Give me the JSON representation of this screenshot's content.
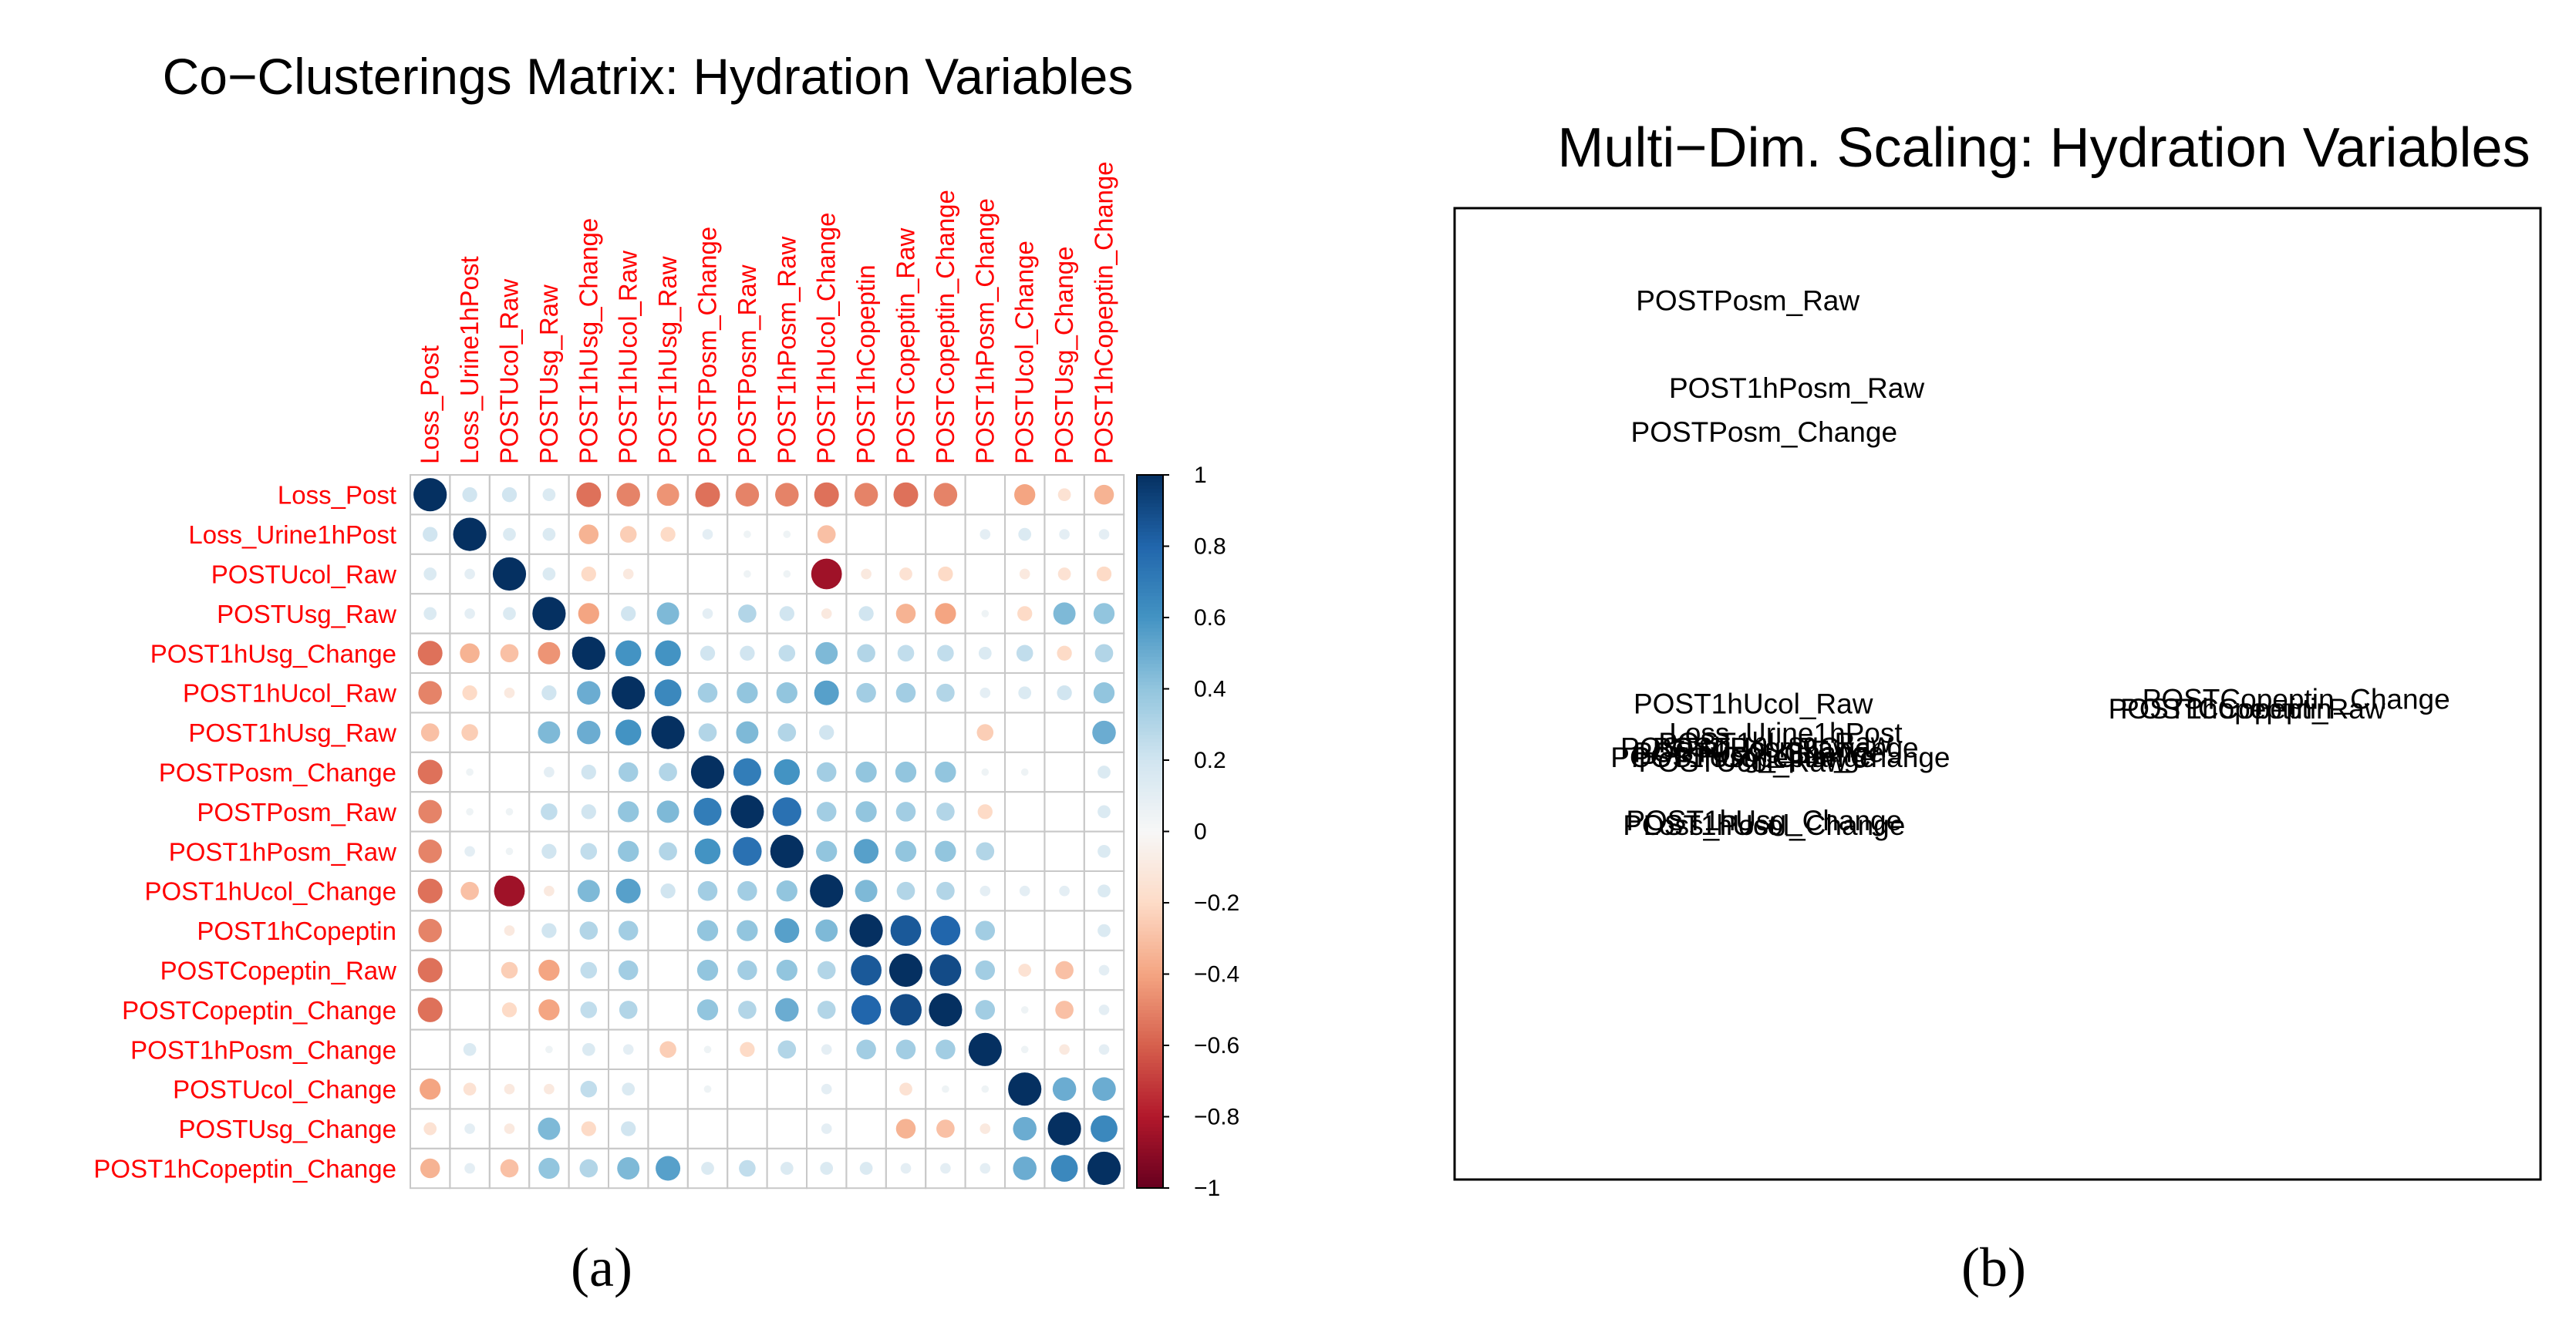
{
  "chart_data": [
    {
      "type": "heatmap",
      "title": "Co−Clusterings Matrix: Hydration Variables",
      "variables": [
        "Loss_Post",
        "Loss_Urine1hPost",
        "POSTUcol_Raw",
        "POSTUsg_Raw",
        "POST1hUsg_Change",
        "POST1hUcol_Raw",
        "POST1hUsg_Raw",
        "POSTPosm_Change",
        "POSTPosm_Raw",
        "POST1hPosm_Raw",
        "POST1hUcol_Change",
        "POST1hCopeptin",
        "POSTCopeptin_Raw",
        "POSTCopeptin_Change",
        "POST1hPosm_Change",
        "POSTUcol_Change",
        "POSTUsg_Change",
        "POST1hCopeptin_Change"
      ],
      "matrix": [
        [
          1.0,
          0.2,
          0.2,
          0.15,
          -0.55,
          -0.5,
          -0.45,
          -0.55,
          -0.5,
          -0.5,
          -0.55,
          -0.5,
          -0.55,
          -0.5,
          0,
          -0.4,
          -0.15,
          -0.35
        ],
        [
          0.2,
          1.0,
          0.15,
          0.15,
          -0.35,
          -0.25,
          -0.2,
          0.1,
          0.05,
          0.05,
          -0.3,
          0,
          0,
          0,
          0.1,
          0.15,
          0.1,
          0.1
        ],
        [
          0.15,
          0.1,
          1.0,
          0.15,
          -0.2,
          -0.1,
          0,
          0,
          0.05,
          0.05,
          -0.85,
          -0.1,
          -0.15,
          -0.2,
          0,
          -0.1,
          -0.15,
          -0.2
        ],
        [
          0.15,
          0.1,
          0.15,
          1.0,
          -0.4,
          0.2,
          0.45,
          0.1,
          0.3,
          0.2,
          -0.1,
          0.2,
          -0.35,
          -0.4,
          0.05,
          -0.2,
          0.45,
          0.4
        ],
        [
          -0.55,
          -0.35,
          -0.3,
          -0.45,
          1.0,
          0.6,
          0.6,
          0.2,
          0.2,
          0.25,
          0.45,
          0.3,
          0.25,
          0.25,
          0.15,
          0.25,
          -0.2,
          0.3
        ],
        [
          -0.5,
          -0.2,
          -0.1,
          0.2,
          0.5,
          1.0,
          0.65,
          0.35,
          0.4,
          0.4,
          0.55,
          0.35,
          0.35,
          0.3,
          0.1,
          0.15,
          0.2,
          0.4
        ],
        [
          -0.3,
          -0.25,
          0,
          0.45,
          0.5,
          0.6,
          1.0,
          0.3,
          0.45,
          0.3,
          0.2,
          0,
          0,
          0,
          -0.25,
          0,
          0,
          0.5
        ],
        [
          -0.55,
          0.05,
          0,
          0.1,
          0.2,
          0.35,
          0.3,
          1.0,
          0.7,
          0.6,
          0.35,
          0.4,
          0.4,
          0.4,
          0.05,
          0.05,
          0,
          0.15
        ],
        [
          -0.5,
          0.05,
          0.05,
          0.25,
          0.2,
          0.4,
          0.45,
          0.7,
          1.0,
          0.75,
          0.35,
          0.4,
          0.35,
          0.3,
          -0.2,
          0,
          0,
          0.15
        ],
        [
          -0.5,
          0.1,
          0.05,
          0.2,
          0.25,
          0.4,
          0.3,
          0.6,
          0.75,
          1.0,
          0.4,
          0.55,
          0.4,
          0.4,
          0.3,
          0,
          0,
          0.15
        ],
        [
          -0.55,
          -0.3,
          -0.85,
          -0.1,
          0.45,
          0.55,
          0.2,
          0.35,
          0.35,
          0.4,
          1.0,
          0.45,
          0.3,
          0.3,
          0.1,
          0.1,
          0.1,
          0.15
        ],
        [
          -0.5,
          0,
          -0.1,
          0.2,
          0.3,
          0.35,
          0,
          0.4,
          0.4,
          0.55,
          0.45,
          1.0,
          0.85,
          0.8,
          0.35,
          0,
          0,
          0.15
        ],
        [
          -0.55,
          0,
          -0.25,
          -0.4,
          0.25,
          0.35,
          0,
          0.4,
          0.35,
          0.4,
          0.3,
          0.85,
          1.0,
          0.9,
          0.35,
          -0.15,
          -0.3,
          0.1
        ],
        [
          -0.55,
          0,
          -0.2,
          -0.4,
          0.25,
          0.3,
          0,
          0.4,
          0.3,
          0.5,
          0.3,
          0.8,
          0.9,
          1.0,
          0.35,
          0.05,
          -0.3,
          0.1
        ],
        [
          0,
          0.15,
          0,
          0.05,
          0.15,
          0.1,
          -0.25,
          0.05,
          -0.2,
          0.3,
          0.1,
          0.35,
          0.35,
          0.35,
          1.0,
          0.05,
          -0.1,
          0.1
        ],
        [
          -0.4,
          -0.15,
          -0.1,
          -0.1,
          0.25,
          0.15,
          0,
          0.05,
          0,
          0,
          0.1,
          0,
          -0.15,
          0.05,
          0.05,
          1.0,
          0.5,
          0.5
        ],
        [
          -0.15,
          0.1,
          -0.1,
          0.45,
          -0.2,
          0.2,
          0,
          0,
          0,
          0,
          0.1,
          0,
          -0.35,
          -0.3,
          -0.1,
          0.5,
          1.0,
          0.65
        ],
        [
          -0.35,
          0.1,
          -0.3,
          0.4,
          0.3,
          0.45,
          0.55,
          0.15,
          0.25,
          0.15,
          0.15,
          0.15,
          0.1,
          0.1,
          0.1,
          0.5,
          0.65,
          1.0
        ]
      ],
      "colorbar": {
        "range": [
          -1,
          1
        ],
        "ticks": [
          "1",
          "0.8",
          "0.6",
          "0.4",
          "0.2",
          "0",
          "−0.2",
          "−0.4",
          "−0.6",
          "−0.8",
          "−1"
        ]
      },
      "label_color": "#ff0000",
      "panel_label": "(a)"
    },
    {
      "type": "scatter",
      "title": "Multi−Dim. Scaling: Hydration Variables",
      "xlim": [
        -1,
        1
      ],
      "ylim": [
        -1,
        1
      ],
      "points": [
        {
          "label": "POSTPosm_Raw",
          "x": -0.46,
          "y": 0.81
        },
        {
          "label": "POST1hPosm_Raw",
          "x": -0.37,
          "y": 0.63
        },
        {
          "label": "POSTPosm_Change",
          "x": -0.43,
          "y": 0.54
        },
        {
          "label": "POST1hUcol_Raw",
          "x": -0.45,
          "y": -0.02
        },
        {
          "label": "POSTCopeptin_Change",
          "x": 0.55,
          "y": -0.01
        },
        {
          "label": "POST1hCopeptin",
          "x": 0.41,
          "y": -0.03
        },
        {
          "label": "POSTCopeptin_Raw",
          "x": 0.47,
          "y": -0.03
        },
        {
          "label": "Loss_Urine1hPost",
          "x": -0.39,
          "y": -0.08
        },
        {
          "label": "POST1hUsg_Raw",
          "x": -0.41,
          "y": -0.1
        },
        {
          "label": "POSTUsg_Raw",
          "x": -0.45,
          "y": -0.11
        },
        {
          "label": "POSTUcol_Change",
          "x": -0.44,
          "y": -0.12
        },
        {
          "label": "POST1hPosm_Change",
          "x": -0.42,
          "y": -0.11
        },
        {
          "label": "POSTUsg_Change",
          "x": -0.45,
          "y": -0.13
        },
        {
          "label": "POSTUcol_Raw",
          "x": -0.47,
          "y": -0.14
        },
        {
          "label": "POST1hUsg_Change",
          "x": -0.43,
          "y": -0.26
        },
        {
          "label": "POST1hUcol_Change",
          "x": -0.43,
          "y": -0.27
        },
        {
          "label": "POST1hCopeptin_Change",
          "x": -0.4,
          "y": -0.13
        },
        {
          "label": "Loss_Post",
          "x": -0.53,
          "y": -0.27
        }
      ],
      "panel_label": "(b)"
    }
  ]
}
